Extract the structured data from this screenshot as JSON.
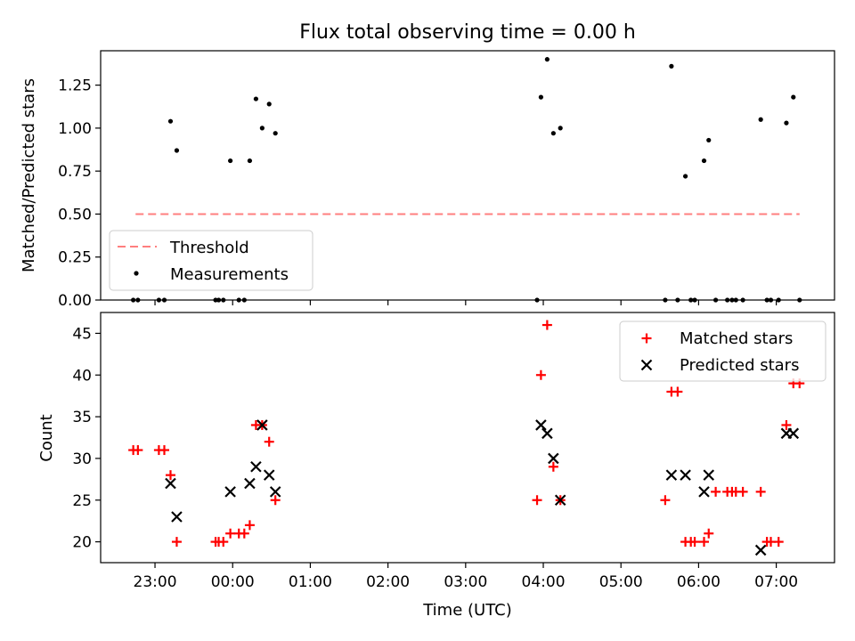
{
  "title": "Flux total observing time = 0.00 h",
  "chart_data": [
    {
      "type": "scatter",
      "panel": "top",
      "ylabel": "Matched/Predicted stars",
      "xlabel": "",
      "xlim_hours": [
        22.3,
        31.75
      ],
      "ylim": [
        0,
        1.45
      ],
      "yticks": [
        0.0,
        0.25,
        0.5,
        0.75,
        1.0,
        1.25
      ],
      "ytick_labels": [
        "0.00",
        "0.25",
        "0.50",
        "0.75",
        "1.00",
        "1.25"
      ],
      "legend_position": "lower-left",
      "threshold": {
        "name": "Threshold",
        "value": 0.5,
        "x_range": [
          22.75,
          31.3
        ],
        "color": "#ff7f7f"
      },
      "measurements": {
        "name": "Measurements",
        "color": "#000000",
        "x": [
          22.72,
          22.78,
          23.05,
          23.12,
          23.2,
          23.28,
          23.78,
          23.82,
          23.88,
          23.97,
          24.08,
          24.15,
          24.22,
          24.3,
          24.38,
          24.47,
          24.55,
          27.92,
          27.97,
          28.05,
          28.13,
          28.22,
          29.57,
          29.65,
          29.73,
          29.83,
          29.9,
          29.95,
          30.07,
          30.13,
          30.22,
          30.37,
          30.43,
          30.48,
          30.57,
          30.8,
          30.88,
          30.93,
          31.03,
          31.13,
          31.22,
          31.3
        ],
        "y": [
          0,
          0,
          0,
          0,
          1.04,
          0.87,
          0,
          0,
          0,
          0.81,
          0,
          0,
          0.81,
          1.17,
          1.0,
          1.14,
          0.97,
          0,
          1.18,
          1.4,
          0.97,
          1.0,
          0,
          1.36,
          0,
          0.72,
          0,
          0,
          0.81,
          0.93,
          0,
          0,
          0,
          0,
          0,
          1.05,
          0,
          0,
          0,
          1.03,
          1.18,
          0
        ]
      }
    },
    {
      "type": "scatter",
      "panel": "bottom",
      "ylabel": "Count",
      "xlabel": "Time (UTC)",
      "xlim_hours": [
        22.3,
        31.75
      ],
      "ylim": [
        17.5,
        47.5
      ],
      "yticks": [
        20,
        25,
        30,
        35,
        40,
        45
      ],
      "ytick_labels": [
        "20",
        "25",
        "30",
        "35",
        "40",
        "45"
      ],
      "xticks_hours": [
        23,
        24,
        25,
        26,
        27,
        28,
        29,
        30,
        31
      ],
      "xtick_labels": [
        "23:00",
        "00:00",
        "01:00",
        "02:00",
        "03:00",
        "04:00",
        "05:00",
        "06:00",
        "07:00"
      ],
      "legend_position": "upper-right",
      "series": [
        {
          "name": "Matched stars",
          "marker": "plus",
          "color": "#ff0000",
          "x": [
            22.72,
            22.78,
            23.05,
            23.12,
            23.2,
            23.28,
            23.78,
            23.82,
            23.88,
            23.97,
            24.08,
            24.15,
            24.22,
            24.3,
            24.38,
            24.47,
            24.55,
            27.92,
            27.97,
            28.05,
            28.13,
            28.22,
            29.57,
            29.65,
            29.73,
            29.83,
            29.9,
            29.95,
            30.07,
            30.13,
            30.22,
            30.37,
            30.43,
            30.48,
            30.57,
            30.8,
            30.88,
            30.93,
            31.03,
            31.13,
            31.22,
            31.3
          ],
          "y": [
            31,
            31,
            31,
            31,
            28,
            20,
            20,
            20,
            20,
            21,
            21,
            21,
            22,
            34,
            34,
            32,
            25,
            25,
            40,
            46,
            29,
            25,
            25,
            38,
            38,
            20,
            20,
            20,
            20,
            21,
            26,
            26,
            26,
            26,
            26,
            26,
            20,
            20,
            20,
            34,
            39,
            39
          ]
        },
        {
          "name": "Predicted stars",
          "marker": "x",
          "color": "#000000",
          "x": [
            23.2,
            23.28,
            23.97,
            24.22,
            24.3,
            24.38,
            24.47,
            24.55,
            27.97,
            28.05,
            28.13,
            28.22,
            29.65,
            29.83,
            30.07,
            30.13,
            30.8,
            31.13,
            31.22
          ],
          "y": [
            27,
            23,
            26,
            27,
            29,
            34,
            28,
            26,
            34,
            33,
            30,
            25,
            28,
            28,
            26,
            28,
            19,
            33,
            33
          ]
        }
      ]
    }
  ]
}
